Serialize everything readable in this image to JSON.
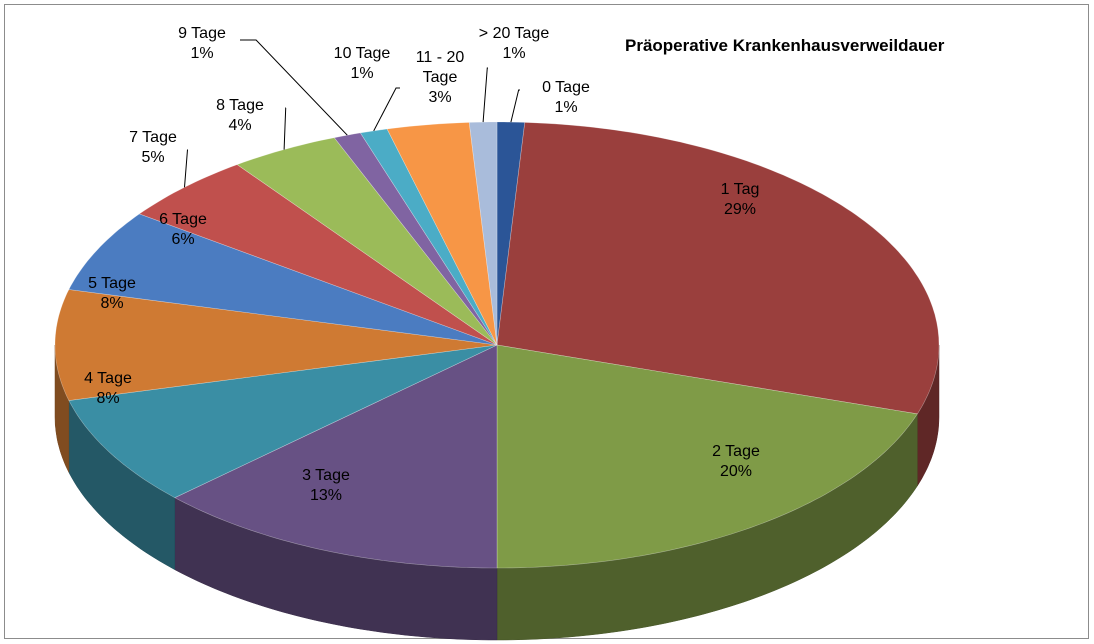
{
  "chart_data": {
    "type": "pie3d",
    "title": "Präoperative Krankenhausverweildauer",
    "categories": [
      "0 Tage",
      "1 Tag",
      "2 Tage",
      "3 Tage",
      "4 Tage",
      "5 Tage",
      "6 Tage",
      "7 Tage",
      "8 Tage",
      "9 Tage",
      "10 Tage",
      "11 - 20 Tage",
      "> 20 Tage"
    ],
    "values": [
      1,
      29,
      20,
      13,
      8,
      8,
      6,
      5,
      4,
      1,
      1,
      3,
      1
    ],
    "value_labels": [
      "1%",
      "29%",
      "20%",
      "13%",
      "8%",
      "8%",
      "6%",
      "5%",
      "4%",
      "1%",
      "1%",
      "3%",
      "1%"
    ],
    "colors": [
      "#2b5597",
      "#9a3f3d",
      "#7f9b47",
      "#675184",
      "#3a8ea4",
      "#cf7a33",
      "#4b7cc1",
      "#c0504d",
      "#9bbb59",
      "#8064a2",
      "#4bacc6",
      "#f79646",
      "#a9bcdb"
    ]
  }
}
